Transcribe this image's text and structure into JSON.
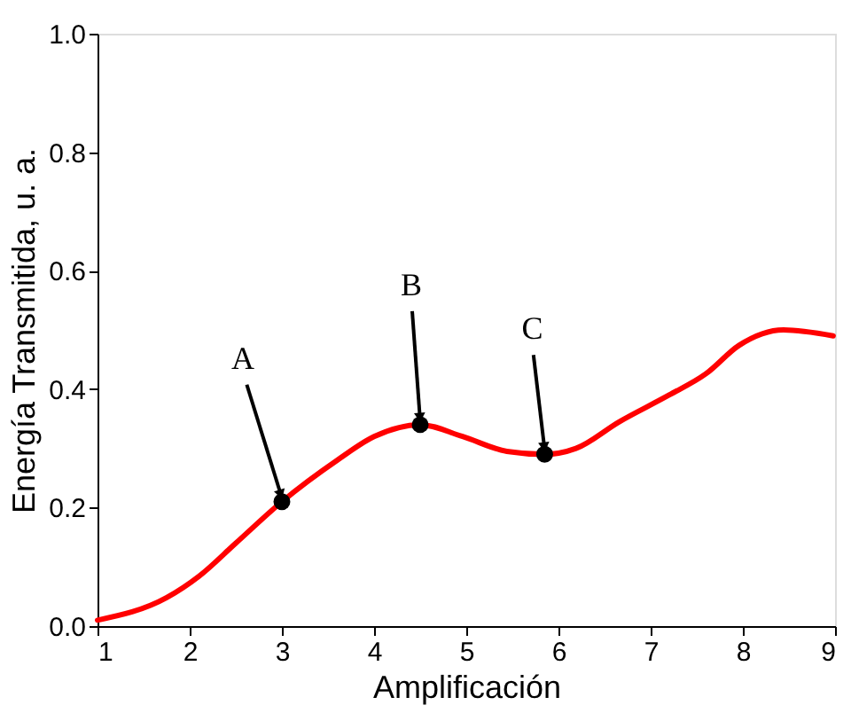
{
  "chart_data": {
    "type": "line",
    "xlabel": "Amplificación",
    "ylabel": "Energía Transmitida, u. a.",
    "xlim": [
      1,
      9
    ],
    "ylim": [
      0,
      1.0
    ],
    "xticks": [
      1,
      2,
      3,
      4,
      5,
      6,
      7,
      8,
      9
    ],
    "yticks": [
      {
        "value": 0,
        "label": "0.0"
      },
      0.2,
      0.4,
      0.6,
      0.8,
      {
        "value": 1,
        "label": "1.0"
      }
    ],
    "grid": false,
    "series": [
      {
        "color": "#ff0000",
        "marker": "none",
        "line_style": "solid",
        "x": [
          1,
          1.75,
          2.1,
          2.5,
          3.0,
          3.6,
          4.0,
          4.5,
          4.96,
          5.44,
          5.85,
          6.19,
          6.66,
          7.2,
          7.6,
          7.96,
          8.44,
          8.98
        ],
        "values": [
          0.01,
          0.048,
          0.084,
          0.14,
          0.21,
          0.28,
          0.32,
          0.34,
          0.32,
          0.295,
          0.29,
          0.3,
          0.345,
          0.39,
          0.426,
          0.474,
          0.5,
          0.49
        ]
      },
      {
        "type": "scatter",
        "color": "#000000",
        "marker": "circle",
        "x": [
          3.0,
          4.5,
          5.85
        ],
        "values": [
          0.21,
          0.34,
          0.29
        ]
      }
    ],
    "annotations": [
      {
        "text": "A",
        "x": 3.0,
        "y": 0.21
      },
      {
        "text": "B",
        "x": 4.5,
        "y": 0.34
      },
      {
        "text": "C",
        "x": 5.85,
        "y": 0.29
      }
    ]
  }
}
